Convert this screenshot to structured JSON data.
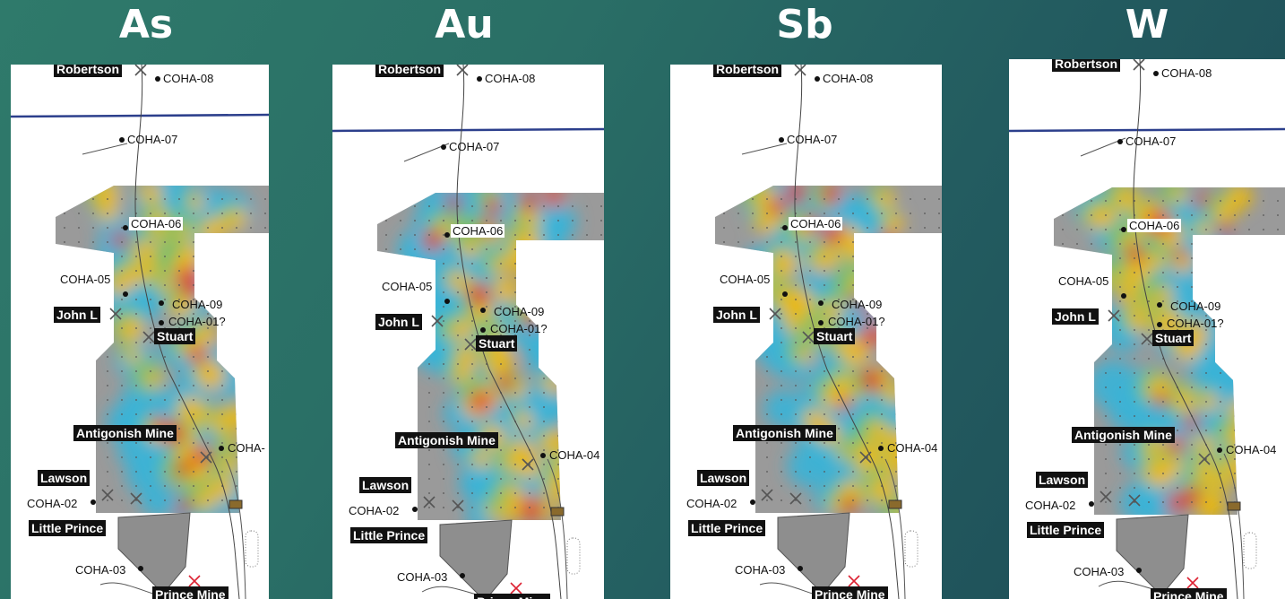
{
  "titles": [
    "As",
    "Au",
    "Sb",
    "W"
  ],
  "labels": {
    "robertson": "Robertson",
    "coha08": "COHA-08",
    "coha07": "COHA-07",
    "coha06": "COHA-06",
    "coha05": "COHA-05",
    "coha09": "COHA-09",
    "coha01": "COHA-01?",
    "john": "John L",
    "stuart": "Stuart",
    "antigonish": "Antigonish Mine",
    "coha04": "COHA-04",
    "coha04_cut": "COHA-",
    "lawson": "Lawson",
    "coha02": "COHA-02",
    "little_prince": "Little Prince",
    "coha03": "COHA-03",
    "prince_mine": "Prince Mine"
  },
  "colors": {
    "background": "#2a6f66",
    "high": "#c0192e",
    "mid": "#f0b800",
    "low": "#39b4d8",
    "base": "#9a9a9a"
  }
}
